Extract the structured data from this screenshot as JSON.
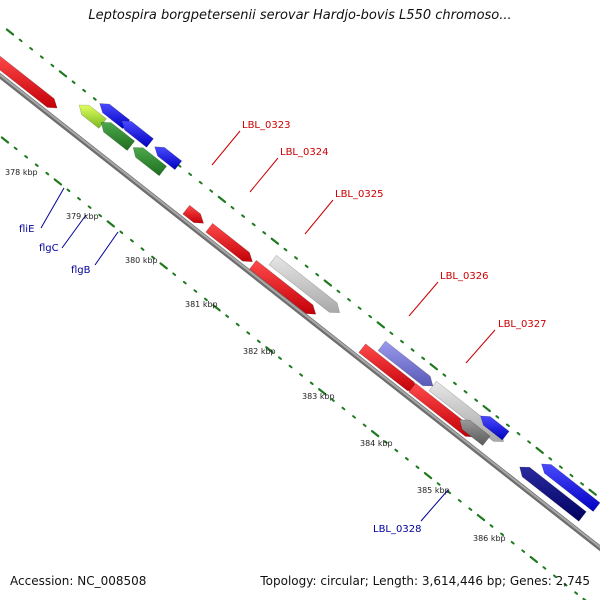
{
  "title": "Leptospira borgpetersenii serovar Hardjo-bovis L550 chromoso...",
  "footer": {
    "accession": "Accession: NC_008508",
    "summary": "Topology: circular; Length: 3,614,446 bp; Genes: 2,745"
  },
  "colors": {
    "forward_gene": "#e8141a",
    "reverse_gene": "#1414f0",
    "rna_gene": "#2e8b2e",
    "other_gene": "#bdbdbd",
    "backbone": "#8c8c8c",
    "tick_dots": "#1f7a1f",
    "label_red": "#cc0000",
    "label_blue": "#000099"
  },
  "scale_labels": [
    "378 kbp",
    "379 kbp",
    "380 kbp",
    "381 kbp",
    "382 kbp",
    "383 kbp",
    "384 kbp",
    "385 kbp",
    "386 kbp"
  ],
  "gene_labels": [
    {
      "text": "fliE",
      "strand": "reverse"
    },
    {
      "text": "flgC",
      "strand": "reverse"
    },
    {
      "text": "flgB",
      "strand": "reverse"
    },
    {
      "text": "LBL_0323",
      "strand": "forward"
    },
    {
      "text": "LBL_0324",
      "strand": "forward"
    },
    {
      "text": "LBL_0325",
      "strand": "forward"
    },
    {
      "text": "LBL_0326",
      "strand": "forward"
    },
    {
      "text": "LBL_0327",
      "strand": "forward"
    },
    {
      "text": "LBL_0328",
      "strand": "reverse"
    }
  ]
}
